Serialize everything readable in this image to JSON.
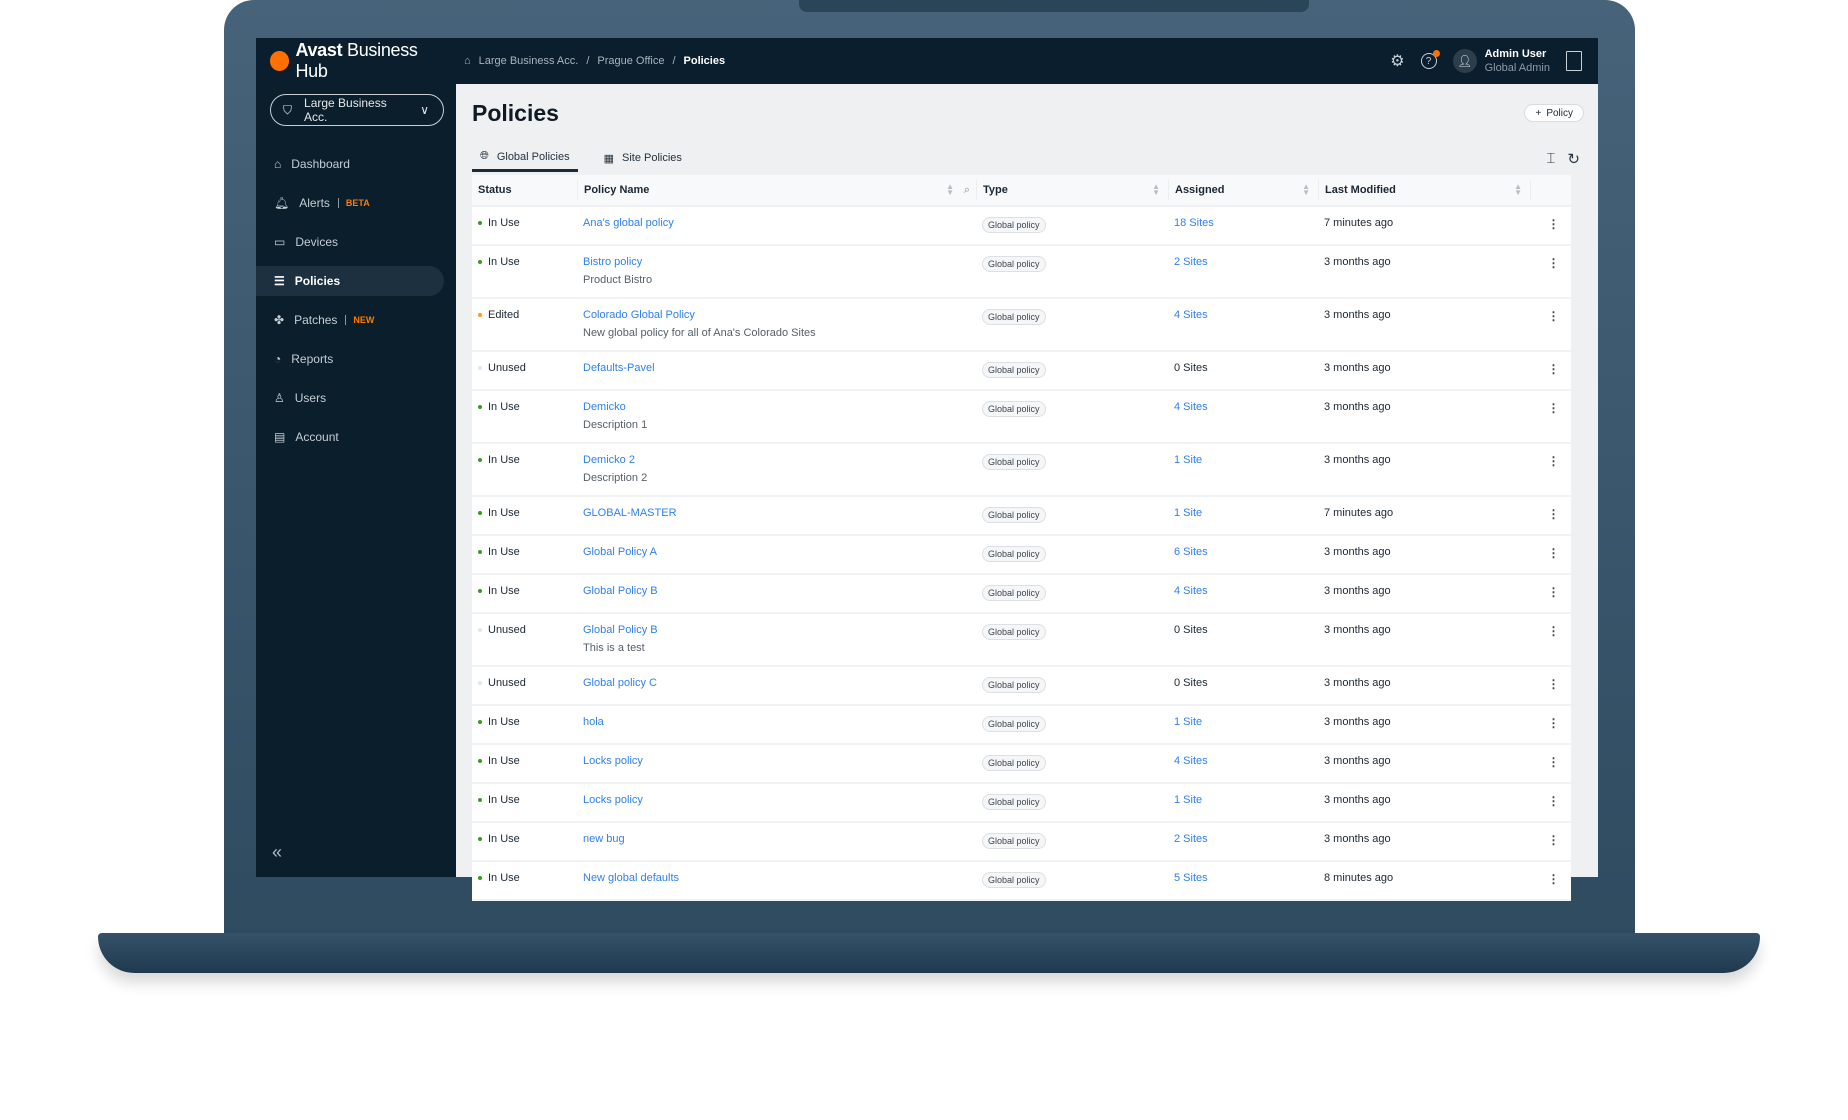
{
  "app": {
    "brand_bold": "Avast",
    "brand_rest": "Business Hub"
  },
  "breadcrumb": [
    "Large Business Acc.",
    "Prague Office",
    "Policies"
  ],
  "user": {
    "name": "Admin User",
    "role": "Global Admin"
  },
  "colors": {
    "accent": "#ff7000",
    "link": "#2f80ed",
    "in_use": "#3a9a1c",
    "edited": "#ff9a1f",
    "unused": "#e4e6e8",
    "topbar": "#0a1e2d"
  },
  "sidebar": {
    "account": "Large Business Acc.",
    "items": [
      {
        "label": "Dashboard",
        "icon": "home-icon"
      },
      {
        "label": "Alerts",
        "badge": "BETA",
        "icon": "bell-icon"
      },
      {
        "label": "Devices",
        "icon": "monitor-icon"
      },
      {
        "label": "Policies",
        "icon": "policies-icon",
        "active": true
      },
      {
        "label": "Patches",
        "badge": "NEW",
        "icon": "patches-icon"
      },
      {
        "label": "Reports",
        "icon": "pie-chart-icon"
      },
      {
        "label": "Users",
        "icon": "user-icon"
      },
      {
        "label": "Account",
        "icon": "document-icon"
      }
    ]
  },
  "page": {
    "title": "Policies",
    "add_button": "Policy"
  },
  "tabs": [
    {
      "label": "Global Policies",
      "active": true
    },
    {
      "label": "Site Policies"
    }
  ],
  "table": {
    "headers": [
      "Status",
      "Policy Name",
      "Type",
      "Assigned",
      "Last Modified"
    ],
    "rows": [
      {
        "status": "In Use",
        "name": "Ana's global policy",
        "desc": "",
        "type": "Global policy",
        "assigned": "18 Sites",
        "modified": "7 minutes ago"
      },
      {
        "status": "In Use",
        "name": "Bistro policy",
        "desc": "Product Bistro",
        "type": "Global policy",
        "assigned": "2 Sites",
        "modified": "3 months ago"
      },
      {
        "status": "Edited",
        "name": "Colorado Global Policy",
        "desc": "New global policy for all of Ana's Colorado Sites",
        "type": "Global policy",
        "assigned": "4 Sites",
        "modified": "3 months ago"
      },
      {
        "status": "Unused",
        "name": "Defaults-Pavel",
        "desc": "",
        "type": "Global policy",
        "assigned": "0 Sites",
        "modified": "3 months ago"
      },
      {
        "status": "In Use",
        "name": "Demicko",
        "desc": "Description 1",
        "type": "Global policy",
        "assigned": "4 Sites",
        "modified": "3 months ago"
      },
      {
        "status": "In Use",
        "name": "Demicko 2",
        "desc": "Description 2",
        "type": "Global policy",
        "assigned": "1 Site",
        "modified": "3 months ago"
      },
      {
        "status": "In Use",
        "name": "GLOBAL-MASTER",
        "desc": "",
        "type": "Global policy",
        "assigned": "1 Site",
        "modified": "7 minutes ago"
      },
      {
        "status": "In Use",
        "name": "Global Policy A",
        "desc": "",
        "type": "Global policy",
        "assigned": "6 Sites",
        "modified": "3 months ago"
      },
      {
        "status": "In Use",
        "name": "Global Policy B",
        "desc": "",
        "type": "Global policy",
        "assigned": "4 Sites",
        "modified": "3 months ago"
      },
      {
        "status": "Unused",
        "name": "Global Policy B",
        "desc": "This is a test",
        "type": "Global policy",
        "assigned": "0 Sites",
        "modified": "3 months ago"
      },
      {
        "status": "Unused",
        "name": "Global policy C",
        "desc": "",
        "type": "Global policy",
        "assigned": "0 Sites",
        "modified": "3 months ago"
      },
      {
        "status": "In Use",
        "name": "hola",
        "desc": "",
        "type": "Global policy",
        "assigned": "1 Site",
        "modified": "3 months ago"
      },
      {
        "status": "In Use",
        "name": "Locks policy",
        "desc": "",
        "type": "Global policy",
        "assigned": "4 Sites",
        "modified": "3 months ago"
      },
      {
        "status": "In Use",
        "name": "Locks policy",
        "desc": "",
        "type": "Global policy",
        "assigned": "1 Site",
        "modified": "3 months ago"
      },
      {
        "status": "In Use",
        "name": "new bug",
        "desc": "",
        "type": "Global policy",
        "assigned": "2 Sites",
        "modified": "3 months ago"
      },
      {
        "status": "In Use",
        "name": "New global defaults",
        "desc": "",
        "type": "Global policy",
        "assigned": "5 Sites",
        "modified": "8 minutes ago"
      }
    ]
  }
}
